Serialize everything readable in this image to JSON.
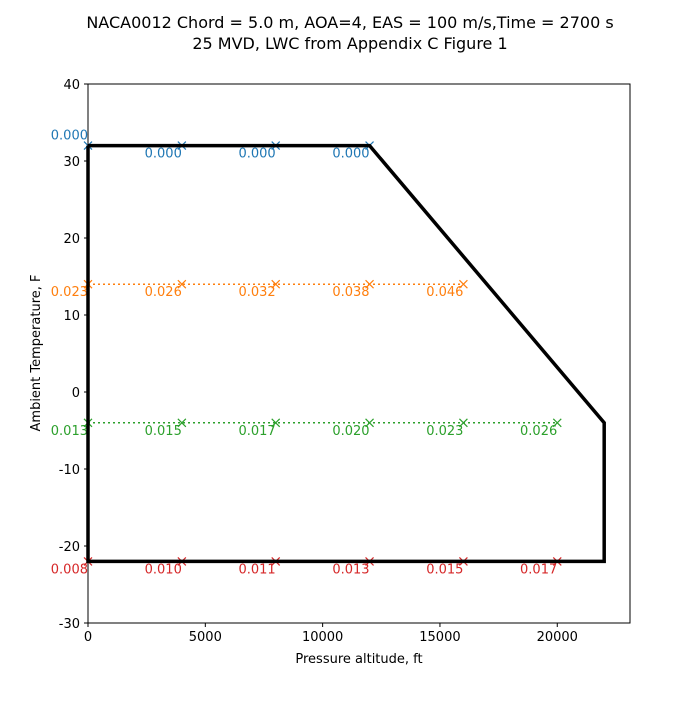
{
  "chart_data": {
    "type": "line",
    "title": "NACA0012 Chord = 5.0 m, AOA=4, EAS = 100 m/s,Time = 2700 s",
    "subtitle": "25 MVD, LWC from Appendix C Figure 1",
    "xlabel": "Pressure altitude, ft",
    "ylabel": "Ambient Temperature, F",
    "xlim": [
      0,
      23100
    ],
    "ylim": [
      -30,
      40
    ],
    "xticks": [
      0,
      5000,
      10000,
      15000,
      20000
    ],
    "yticks": [
      -30,
      -20,
      -10,
      0,
      10,
      20,
      30,
      40
    ],
    "grid": false,
    "envelope": {
      "color": "#000000",
      "x": [
        0,
        12000,
        22000,
        22000,
        0,
        0
      ],
      "y": [
        32,
        32,
        -4,
        -22,
        -22,
        32
      ]
    },
    "series": [
      {
        "color": "#1f77b4",
        "y": 32,
        "x": [
          0,
          4000,
          8000,
          12000
        ],
        "labels": [
          "0.000",
          "0.000",
          "0.000",
          "0.000"
        ]
      },
      {
        "color": "#ff7f0e",
        "y": 14,
        "x": [
          0,
          4000,
          8000,
          12000,
          16000
        ],
        "labels": [
          "0.023",
          "0.026",
          "0.032",
          "0.038",
          "0.046"
        ]
      },
      {
        "color": "#2ca02c",
        "y": -4,
        "x": [
          0,
          4000,
          8000,
          12000,
          16000,
          20000
        ],
        "labels": [
          "0.013",
          "0.015",
          "0.017",
          "0.020",
          "0.023",
          "0.026"
        ]
      },
      {
        "color": "#d62728",
        "y": -22,
        "x": [
          0,
          4000,
          8000,
          12000,
          16000,
          20000
        ],
        "labels": [
          "0.008",
          "0.010",
          "0.011",
          "0.013",
          "0.015",
          "0.017"
        ]
      }
    ]
  }
}
